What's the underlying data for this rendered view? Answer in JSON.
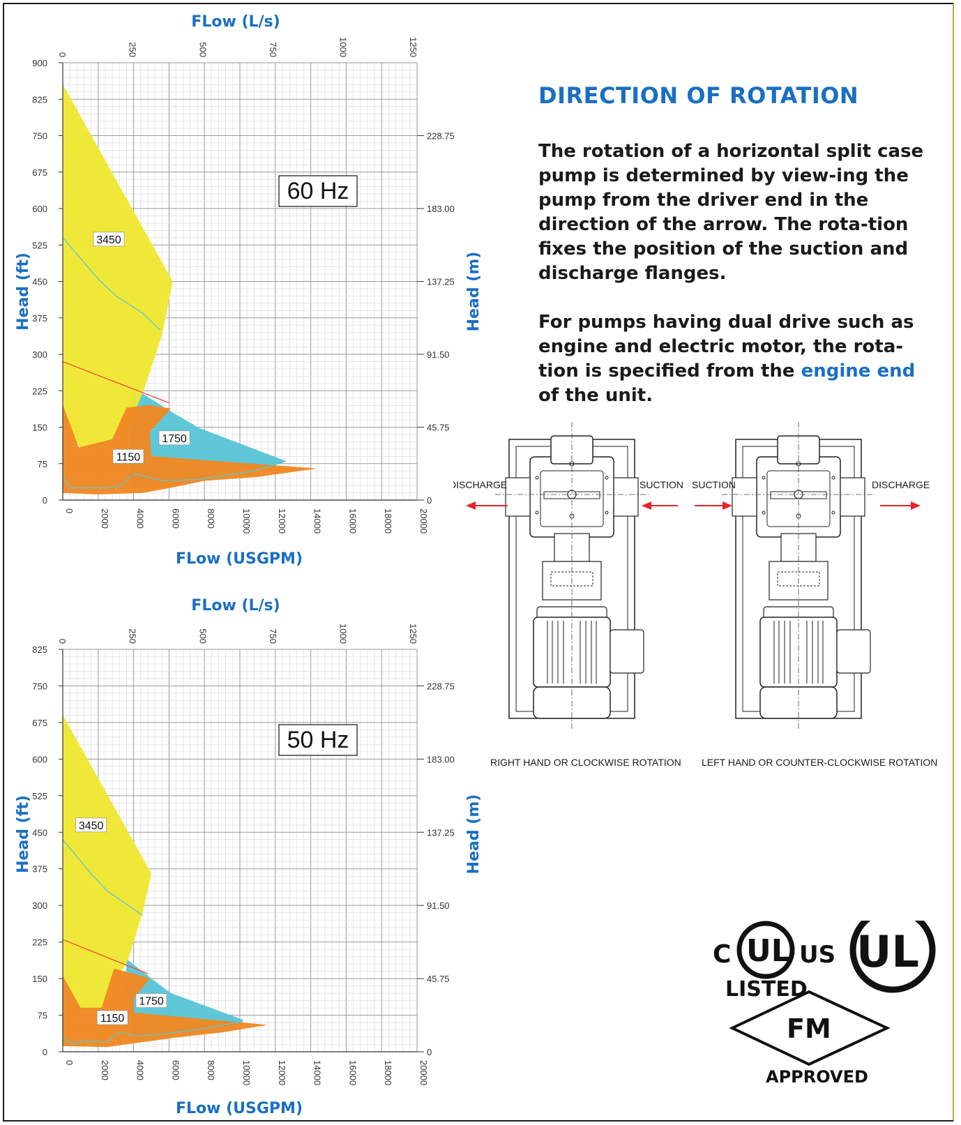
{
  "colors": {
    "accent_blue": "#1a6fc2",
    "yellow_3450": "#f0e832",
    "orange_1150": "#f08a24",
    "cyan_1750": "#5bc6d8",
    "red_line": "#f04a3a",
    "grid_major": "#9a9a9a",
    "grid_minor": "#d6d6d6"
  },
  "rotation": {
    "heading": "DIRECTION OF ROTATION",
    "para1": "The rotation of a horizontal split case pump is determined by view-ing the pump from the driver end in the direction of the arrow. The rota-tion fixes the position of the suction and discharge flanges.",
    "para2_pre": "For pumps having dual drive such as engine and electric motor, the rota-tion is specified from the ",
    "para2_highlight": "engine end",
    "para2_post": " of the unit."
  },
  "pump": {
    "right": {
      "left_label": "DISCHARGE",
      "right_label": "SUCTION",
      "caption": "RIGHT HAND OR CLOCKWISE ROTATION"
    },
    "left": {
      "left_label": "SUCTION",
      "right_label": "DISCHARGE",
      "caption": "LEFT HAND OR COUNTER-CLOCKWISE ROTATION"
    }
  },
  "logos": {
    "ul_listed_c": "C",
    "ul_listed_us": "US",
    "ul_listed_text": "LISTED",
    "ul_mark": "UL",
    "ul_mark_registered": "®",
    "fm_text": "FM",
    "fm_approved": "APPROVED"
  },
  "chart_data": [
    {
      "type": "area",
      "title": "60 Hz",
      "top_xlabel": "FLow (L/s)",
      "xlabel": "FLow (USGPM)",
      "ylabel": "Head (ft)",
      "ylabel_right": "Head (m)",
      "xlim": [
        0,
        20000
      ],
      "ylim": [
        0,
        900
      ],
      "grid": true,
      "x_ticks": [
        "0",
        "2000",
        "4000",
        "6000",
        "8000",
        "10000",
        "12000",
        "14000",
        "16000",
        "18000",
        "20000"
      ],
      "top_ticks": [
        "0",
        "250",
        "500",
        "750",
        "1000",
        "1250"
      ],
      "top_tick_values": [
        0,
        250,
        500,
        750,
        1000,
        1250
      ],
      "y_ticks": [
        "0",
        "75",
        "150",
        "225",
        "300",
        "375",
        "450",
        "525",
        "600",
        "675",
        "750",
        "825",
        "900"
      ],
      "right_ticks": [
        "0",
        "45.75",
        "91.50",
        "137.25",
        "183.00",
        "228.75"
      ],
      "right_tick_values": [
        0,
        45.75,
        91.5,
        137.25,
        183.0,
        228.75
      ],
      "series": [
        {
          "name": "1750",
          "label_at": [
            6300,
            128
          ],
          "points": [
            [
              3800,
              235
            ],
            [
              6200,
              180
            ],
            [
              7700,
              148
            ],
            [
              12600,
              80
            ],
            [
              12000,
              72
            ],
            [
              9500,
              58
            ],
            [
              7000,
              42
            ],
            [
              5500,
              35
            ],
            [
              3800,
              30
            ],
            [
              3800,
              170
            ]
          ]
        },
        {
          "name": "3450",
          "label_at": [
            2600,
            537
          ],
          "points": [
            [
              0,
              855
            ],
            [
              6200,
              450
            ],
            [
              5600,
              340
            ],
            [
              4600,
              230
            ],
            [
              3600,
              140
            ],
            [
              2800,
              125
            ],
            [
              1000,
              108
            ],
            [
              0,
              160
            ]
          ]
        },
        {
          "name": "1150",
          "label_at": [
            3700,
            90
          ],
          "points": [
            [
              0,
              195
            ],
            [
              900,
              108
            ],
            [
              2800,
              125
            ],
            [
              3600,
              190
            ],
            [
              4900,
              195
            ],
            [
              6100,
              188
            ],
            [
              4900,
              140
            ],
            [
              5000,
              90
            ],
            [
              14300,
              65
            ],
            [
              11000,
              48
            ],
            [
              8000,
              40
            ],
            [
              6000,
              25
            ],
            [
              4500,
              15
            ],
            [
              2000,
              12
            ],
            [
              0,
              15
            ]
          ]
        }
      ],
      "lines": [
        {
          "color": "red_line",
          "points": [
            [
              0,
              285
            ],
            [
              6000,
              200
            ]
          ]
        },
        {
          "color": "cyan_1750",
          "points": [
            [
              0,
              540
            ],
            [
              2000,
              455
            ],
            [
              3000,
              420
            ],
            [
              4500,
              385
            ],
            [
              5500,
              350
            ]
          ]
        },
        {
          "color": "cyan_1750",
          "points": [
            [
              0,
              50
            ],
            [
              400,
              25
            ],
            [
              1200,
              25
            ],
            [
              2600,
              25
            ],
            [
              3300,
              30
            ],
            [
              4000,
              55
            ],
            [
              5600,
              40
            ],
            [
              7600,
              42
            ],
            [
              10800,
              60
            ],
            [
              12600,
              80
            ]
          ]
        }
      ]
    },
    {
      "type": "area",
      "title": "50 Hz",
      "top_xlabel": "FLow (L/s)",
      "xlabel": "FLow (USGPM)",
      "ylabel": "Head (ft)",
      "ylabel_right": "Head (m)",
      "xlim": [
        0,
        20000
      ],
      "ylim": [
        0,
        825
      ],
      "grid": true,
      "x_ticks": [
        "0",
        "2000",
        "4000",
        "6000",
        "8000",
        "10000",
        "12000",
        "14000",
        "16000",
        "18000",
        "20000"
      ],
      "top_ticks": [
        "0",
        "250",
        "500",
        "750",
        "1000",
        "1250"
      ],
      "top_tick_values": [
        0,
        250,
        500,
        750,
        1000,
        1250
      ],
      "y_ticks": [
        "0",
        "75",
        "150",
        "225",
        "300",
        "375",
        "450",
        "525",
        "600",
        "675",
        "750",
        "825"
      ],
      "right_ticks": [
        "0",
        "45.75",
        "91.50",
        "137.25",
        "183.00",
        "228.75"
      ],
      "right_tick_values": [
        0,
        45.75,
        91.5,
        137.25,
        183.0,
        228.75
      ],
      "series": [
        {
          "name": "1750",
          "label_at": [
            5000,
            105
          ],
          "points": [
            [
              3600,
              190
            ],
            [
              5000,
              150
            ],
            [
              6100,
              120
            ],
            [
              10200,
              65
            ],
            [
              9800,
              55
            ],
            [
              7500,
              45
            ],
            [
              5800,
              35
            ],
            [
              4000,
              30
            ],
            [
              3600,
              130
            ]
          ]
        },
        {
          "name": "3450",
          "label_at": [
            1600,
            465
          ],
          "points": [
            [
              0,
              690
            ],
            [
              5000,
              365
            ],
            [
              4500,
              285
            ],
            [
              3700,
              190
            ],
            [
              2900,
              140
            ],
            [
              2200,
              90
            ],
            [
              1000,
              85
            ],
            [
              0,
              150
            ]
          ]
        },
        {
          "name": "1150",
          "label_at": [
            2800,
            70
          ],
          "points": [
            [
              0,
              155
            ],
            [
              1000,
              90
            ],
            [
              2200,
              90
            ],
            [
              2900,
              170
            ],
            [
              4000,
              160
            ],
            [
              4900,
              150
            ],
            [
              4000,
              110
            ],
            [
              4000,
              80
            ],
            [
              11500,
              55
            ],
            [
              9000,
              40
            ],
            [
              6500,
              30
            ],
            [
              4500,
              20
            ],
            [
              2500,
              10
            ],
            [
              0,
              12
            ]
          ]
        }
      ],
      "lines": [
        {
          "color": "red_line",
          "points": [
            [
              0,
              230
            ],
            [
              4800,
              160
            ]
          ]
        },
        {
          "color": "cyan_1750",
          "points": [
            [
              0,
              435
            ],
            [
              1600,
              365
            ],
            [
              2500,
              330
            ],
            [
              3500,
              305
            ],
            [
              4500,
              280
            ]
          ]
        },
        {
          "color": "cyan_1750",
          "points": [
            [
              0,
              28
            ],
            [
              500,
              18
            ],
            [
              1500,
              22
            ],
            [
              2500,
              20
            ],
            [
              3200,
              40
            ],
            [
              4300,
              32
            ],
            [
              6000,
              38
            ],
            [
              8000,
              48
            ],
            [
              10200,
              62
            ]
          ]
        }
      ]
    }
  ]
}
